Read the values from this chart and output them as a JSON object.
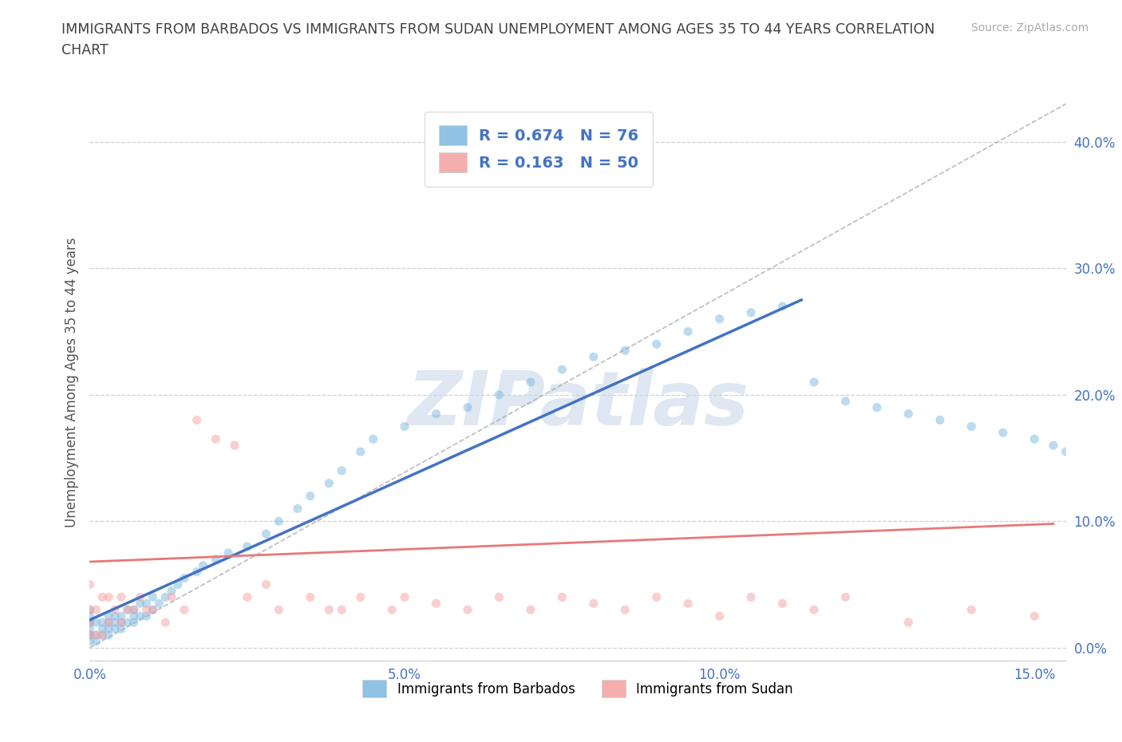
{
  "title": "IMMIGRANTS FROM BARBADOS VS IMMIGRANTS FROM SUDAN UNEMPLOYMENT AMONG AGES 35 TO 44 YEARS CORRELATION\nCHART",
  "source_text": "Source: ZipAtlas.com",
  "ylabel": "Unemployment Among Ages 35 to 44 years",
  "xlim": [
    0.0,
    0.155
  ],
  "ylim": [
    -0.01,
    0.43
  ],
  "xticks": [
    0.0,
    0.05,
    0.1,
    0.15
  ],
  "xticklabels": [
    "0.0%",
    "5.0%",
    "10.0%",
    "15.0%"
  ],
  "yticks": [
    0.0,
    0.1,
    0.2,
    0.3,
    0.4
  ],
  "yticklabels": [
    "0.0%",
    "10.0%",
    "20.0%",
    "30.0%",
    "40.0%"
  ],
  "barbados_color": "#7bb8e0",
  "sudan_color": "#f4a0a0",
  "barbados_R": 0.674,
  "barbados_N": 76,
  "sudan_R": 0.163,
  "sudan_N": 50,
  "legend_label_barbados": "Immigrants from Barbados",
  "legend_label_sudan": "Immigrants from Sudan",
  "watermark": "ZIPatlas",
  "watermark_color": "#c8d8ea",
  "background_color": "#ffffff",
  "grid_color": "#d0d0d0",
  "title_color": "#404040",
  "axis_label_color": "#555555",
  "tick_color": "#4472c4",
  "legend_text_color": "#4472c4",
  "scatter_alpha": 0.5,
  "scatter_size": 65,
  "barbados_line_color": "#4472c4",
  "sudan_line_color": "#e87878",
  "ref_line_color": "#aaaaaa",
  "barbados_line_x": [
    0.0,
    0.113
  ],
  "barbados_line_y": [
    0.022,
    0.275
  ],
  "sudan_line_x": [
    0.0,
    0.153
  ],
  "sudan_line_y": [
    0.068,
    0.098
  ],
  "ref_line_x": [
    0.0,
    0.155
  ],
  "ref_line_y": [
    0.0,
    0.43
  ],
  "barbados_scatter_x": [
    0.0,
    0.0,
    0.0,
    0.0,
    0.0,
    0.0,
    0.0,
    0.0,
    0.001,
    0.001,
    0.001,
    0.002,
    0.002,
    0.002,
    0.003,
    0.003,
    0.003,
    0.003,
    0.004,
    0.004,
    0.004,
    0.005,
    0.005,
    0.005,
    0.006,
    0.006,
    0.007,
    0.007,
    0.007,
    0.008,
    0.008,
    0.009,
    0.009,
    0.01,
    0.01,
    0.011,
    0.012,
    0.013,
    0.014,
    0.015,
    0.017,
    0.018,
    0.02,
    0.022,
    0.025,
    0.028,
    0.03,
    0.033,
    0.035,
    0.038,
    0.04,
    0.043,
    0.045,
    0.05,
    0.055,
    0.06,
    0.065,
    0.07,
    0.075,
    0.08,
    0.085,
    0.09,
    0.095,
    0.1,
    0.105,
    0.11,
    0.115,
    0.12,
    0.125,
    0.13,
    0.135,
    0.14,
    0.145,
    0.15,
    0.153,
    0.155
  ],
  "barbados_scatter_y": [
    0.005,
    0.01,
    0.01,
    0.015,
    0.02,
    0.02,
    0.025,
    0.03,
    0.005,
    0.01,
    0.02,
    0.01,
    0.015,
    0.02,
    0.01,
    0.015,
    0.02,
    0.025,
    0.015,
    0.02,
    0.025,
    0.015,
    0.02,
    0.025,
    0.02,
    0.03,
    0.02,
    0.025,
    0.03,
    0.025,
    0.035,
    0.025,
    0.035,
    0.03,
    0.04,
    0.035,
    0.04,
    0.045,
    0.05,
    0.055,
    0.06,
    0.065,
    0.07,
    0.075,
    0.08,
    0.09,
    0.1,
    0.11,
    0.12,
    0.13,
    0.14,
    0.155,
    0.165,
    0.175,
    0.185,
    0.19,
    0.2,
    0.21,
    0.22,
    0.23,
    0.235,
    0.24,
    0.25,
    0.26,
    0.265,
    0.27,
    0.21,
    0.195,
    0.19,
    0.185,
    0.18,
    0.175,
    0.17,
    0.165,
    0.16,
    0.155
  ],
  "sudan_scatter_x": [
    0.0,
    0.0,
    0.0,
    0.0,
    0.001,
    0.001,
    0.002,
    0.002,
    0.003,
    0.003,
    0.004,
    0.005,
    0.005,
    0.006,
    0.007,
    0.008,
    0.009,
    0.01,
    0.012,
    0.013,
    0.015,
    0.017,
    0.02,
    0.023,
    0.025,
    0.028,
    0.03,
    0.035,
    0.038,
    0.04,
    0.043,
    0.048,
    0.05,
    0.055,
    0.06,
    0.065,
    0.07,
    0.075,
    0.08,
    0.085,
    0.09,
    0.095,
    0.1,
    0.105,
    0.11,
    0.115,
    0.12,
    0.13,
    0.14,
    0.15
  ],
  "sudan_scatter_y": [
    0.01,
    0.02,
    0.03,
    0.05,
    0.01,
    0.03,
    0.01,
    0.04,
    0.02,
    0.04,
    0.03,
    0.02,
    0.04,
    0.03,
    0.03,
    0.04,
    0.03,
    0.03,
    0.02,
    0.04,
    0.03,
    0.18,
    0.165,
    0.16,
    0.04,
    0.05,
    0.03,
    0.04,
    0.03,
    0.03,
    0.04,
    0.03,
    0.04,
    0.035,
    0.03,
    0.04,
    0.03,
    0.04,
    0.035,
    0.03,
    0.04,
    0.035,
    0.025,
    0.04,
    0.035,
    0.03,
    0.04,
    0.02,
    0.03,
    0.025
  ]
}
